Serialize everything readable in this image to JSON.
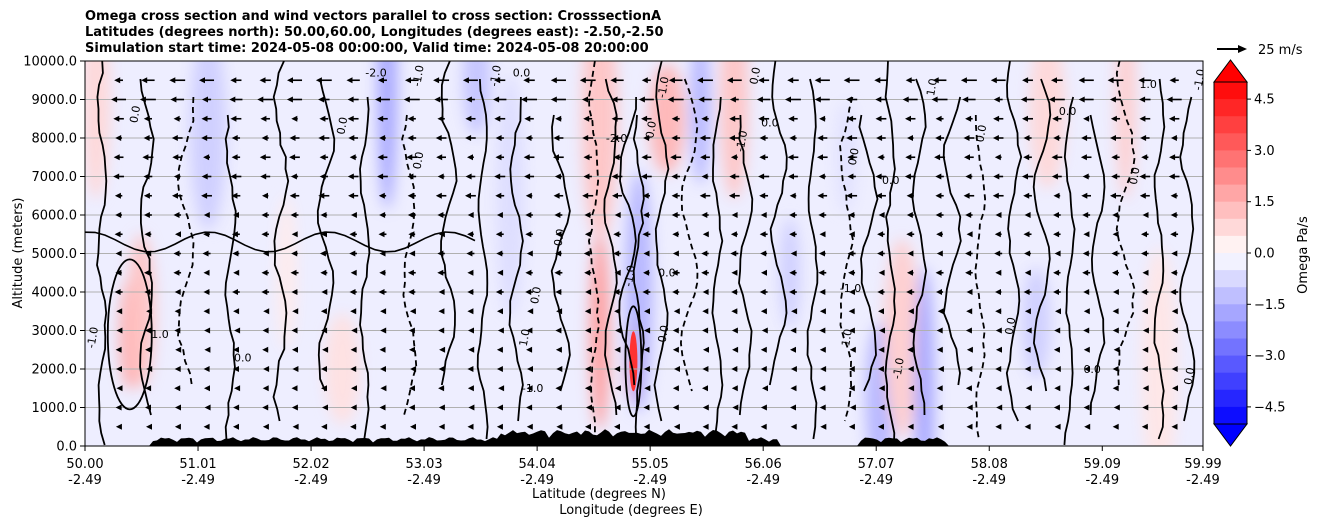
{
  "chart_data": {
    "type": "contourf",
    "title_lines": [
      "Omega cross section and wind vectors parallel to cross section: CrosssectionA",
      "Latitudes (degrees north): 50.00,60.00, Longitudes (degrees east): -2.50,-2.50",
      "Simulation start time: 2024-05-08 00:00:00, Valid time: 2024-05-08 20:00:00"
    ],
    "ylabel": "Altitude (meters)",
    "xlabel_lines": [
      "Latitude (degrees N)",
      "Longitude (degrees E)"
    ],
    "ylim": [
      0,
      10000
    ],
    "y_ticks": [
      "0.0",
      "1000.0",
      "2000.0",
      "3000.0",
      "4000.0",
      "5000.0",
      "6000.0",
      "7000.0",
      "8000.0",
      "9000.0",
      "10000.0"
    ],
    "x_range": [
      50.0,
      59.99
    ],
    "x_ticks": [
      {
        "lat": "50.00",
        "lon": "-2.49"
      },
      {
        "lat": "51.01",
        "lon": "-2.49"
      },
      {
        "lat": "52.02",
        "lon": "-2.49"
      },
      {
        "lat": "53.03",
        "lon": "-2.49"
      },
      {
        "lat": "54.04",
        "lon": "-2.49"
      },
      {
        "lat": "55.05",
        "lon": "-2.49"
      },
      {
        "lat": "56.06",
        "lon": "-2.49"
      },
      {
        "lat": "57.07",
        "lon": "-2.49"
      },
      {
        "lat": "58.08",
        "lon": "-2.49"
      },
      {
        "lat": "59.09",
        "lon": "-2.49"
      },
      {
        "lat": "59.99",
        "lon": "-2.49"
      }
    ],
    "colorbar": {
      "label": "Omega Pa/s",
      "range": [
        -5.0,
        5.0
      ],
      "tick_labels": [
        "4.5",
        "3.0",
        "1.5",
        "0.0",
        "−1.5",
        "−3.0",
        "−4.5"
      ],
      "tick_values": [
        4.5,
        3.0,
        1.5,
        0.0,
        -1.5,
        -3.0,
        -4.5
      ],
      "colormap": "bwr",
      "extend": "both"
    },
    "quiver_key": {
      "label": "25 m/s",
      "value": 25
    },
    "omega_regions": [
      {
        "x": 50.4,
        "y": 2900,
        "value": 1.8
      },
      {
        "x": 50.5,
        "y": 3500,
        "value": 1.2
      },
      {
        "x": 51.1,
        "y": 8200,
        "value": -1.0
      },
      {
        "x": 52.7,
        "y": 9300,
        "value": -1.8
      },
      {
        "x": 53.5,
        "y": 9500,
        "value": -1.2
      },
      {
        "x": 54.9,
        "y": 2200,
        "value": 4.0
      },
      {
        "x": 54.6,
        "y": 3000,
        "value": 2.0
      },
      {
        "x": 54.95,
        "y": 4000,
        "value": -1.5
      },
      {
        "x": 55.2,
        "y": 8500,
        "value": 1.5
      },
      {
        "x": 55.5,
        "y": 8800,
        "value": -1.5
      },
      {
        "x": 55.8,
        "y": 9000,
        "value": 1.2
      },
      {
        "x": 54.6,
        "y": 8500,
        "value": 1.2
      },
      {
        "x": 56.3,
        "y": 4500,
        "value": -1.0
      },
      {
        "x": 57.1,
        "y": 1200,
        "value": -1.5
      },
      {
        "x": 57.3,
        "y": 2800,
        "value": 1.0
      },
      {
        "x": 57.5,
        "y": 1500,
        "value": -1.8
      },
      {
        "x": 58.5,
        "y": 3200,
        "value": -1.0
      },
      {
        "x": 58.6,
        "y": 8700,
        "value": 0.8
      },
      {
        "x": 59.3,
        "y": 9000,
        "value": 1.0
      },
      {
        "x": 53.8,
        "y": 6500,
        "value": -0.7
      },
      {
        "x": 52.3,
        "y": 2000,
        "value": 0.6
      },
      {
        "x": 51.8,
        "y": 4500,
        "value": 0.4
      },
      {
        "x": 50.1,
        "y": 9000,
        "value": 0.8
      },
      {
        "x": 59.6,
        "y": 2000,
        "value": 0.5
      },
      {
        "x": 56.8,
        "y": 7500,
        "value": -0.6
      }
    ],
    "contour_labels": [
      {
        "text": "1.0",
        "x": 50.67,
        "y": 2800
      },
      {
        "text": "-1.0",
        "x": 50.1,
        "y": 2800
      },
      {
        "text": "0.0",
        "x": 50.48,
        "y": 8600
      },
      {
        "text": "0.0",
        "x": 51.41,
        "y": 2200
      },
      {
        "text": "0.0",
        "x": 52.33,
        "y": 8300
      },
      {
        "text": "-1.0",
        "x": 53.01,
        "y": 9600
      },
      {
        "text": "-2.0",
        "x": 52.6,
        "y": 9600
      },
      {
        "text": "0.0",
        "x": 53.01,
        "y": 7400
      },
      {
        "text": "-1.0",
        "x": 53.7,
        "y": 9600
      },
      {
        "text": "0.0",
        "x": 53.9,
        "y": 9600
      },
      {
        "text": "0.0",
        "x": 54.06,
        "y": 3900
      },
      {
        "text": "1.0",
        "x": 53.96,
        "y": 2800
      },
      {
        "text": "-1.0",
        "x": 54.0,
        "y": 1400
      },
      {
        "text": "0.0",
        "x": 54.27,
        "y": 5400
      },
      {
        "text": "-1.0",
        "x": 54.9,
        "y": 4400
      },
      {
        "text": "-2.0",
        "x": 54.75,
        "y": 7900
      },
      {
        "text": "-1.0",
        "x": 55.2,
        "y": 9300
      },
      {
        "text": "0.0",
        "x": 55.09,
        "y": 8200
      },
      {
        "text": "0.0",
        "x": 55.2,
        "y": 4400
      },
      {
        "text": "0.0",
        "x": 55.2,
        "y": 2900
      },
      {
        "text": "-1.0",
        "x": 55.9,
        "y": 7900
      },
      {
        "text": "0.0",
        "x": 56.12,
        "y": 8300
      },
      {
        "text": "0.0",
        "x": 56.02,
        "y": 9600
      },
      {
        "text": "0.0",
        "x": 56.9,
        "y": 7500
      },
      {
        "text": "-1.0",
        "x": 56.84,
        "y": 4000
      },
      {
        "text": "1.0",
        "x": 56.84,
        "y": 2800
      },
      {
        "text": "-1.0",
        "x": 57.3,
        "y": 2000
      },
      {
        "text": "0.0",
        "x": 57.2,
        "y": 6800
      },
      {
        "text": "1.0",
        "x": 57.6,
        "y": 9300
      },
      {
        "text": "0.0",
        "x": 58.04,
        "y": 8100
      },
      {
        "text": "0.0",
        "x": 58.78,
        "y": 8600
      },
      {
        "text": "0.0",
        "x": 59.41,
        "y": 7000
      },
      {
        "text": "-1.0",
        "x": 59.99,
        "y": 9500
      },
      {
        "text": "0.0",
        "x": 59.0,
        "y": 1900
      },
      {
        "text": "0.0",
        "x": 59.9,
        "y": 1800
      },
      {
        "text": "0.0",
        "x": 58.3,
        "y": 3100
      },
      {
        "text": "1.0",
        "x": 59.5,
        "y": 9300
      }
    ]
  },
  "colors": {
    "neg_strong": "#0000ff",
    "pos_strong": "#ff0000",
    "neutral": "#ffffff",
    "contour": "#000000",
    "terrain": "#000000",
    "grid": "#b0b0b0"
  }
}
